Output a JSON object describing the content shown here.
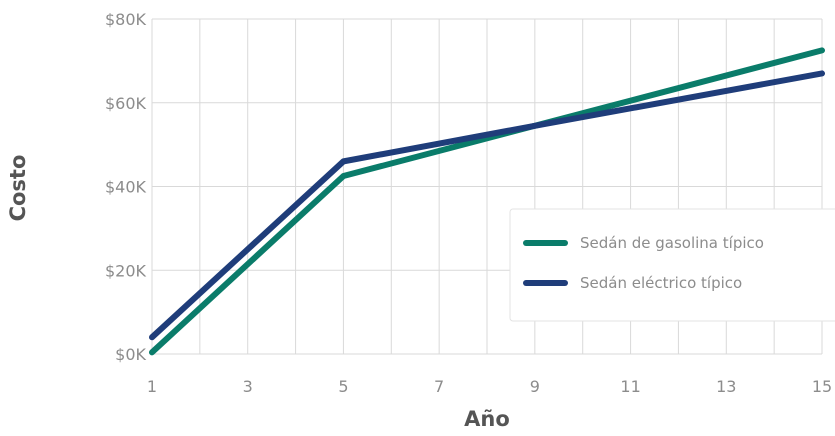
{
  "chart_data": {
    "type": "line",
    "xlabel": "Año",
    "ylabel": "Costo",
    "x_ticks": [
      "1",
      "3",
      "5",
      "7",
      "9",
      "11",
      "13",
      "15"
    ],
    "y_ticks": [
      "$0K",
      "$20K",
      "$40K",
      "$60K",
      "$80K"
    ],
    "xlim": [
      1,
      15
    ],
    "ylim": [
      0,
      80000
    ],
    "grid": true,
    "legend_position": "right",
    "series": [
      {
        "name": "Sedán de gasolina típico",
        "color": "#0a7c6a",
        "x": [
          1,
          5,
          9,
          15
        ],
        "y": [
          400,
          42500,
          54500,
          72500
        ]
      },
      {
        "name": "Sedán eléctrico típico",
        "color": "#1f3d7a",
        "x": [
          1,
          5,
          9,
          15
        ],
        "y": [
          4000,
          46000,
          54500,
          67000
        ]
      }
    ]
  }
}
